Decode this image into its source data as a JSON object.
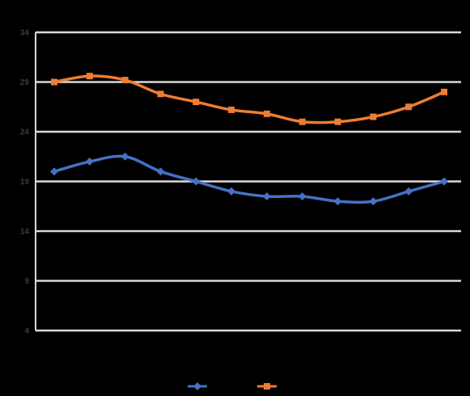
{
  "chart_data": {
    "type": "line",
    "title": "",
    "xlabel": "",
    "ylabel": "",
    "categories": [
      "",
      "",
      "",
      "",
      "",
      "",
      "",
      "",
      "",
      "",
      "",
      ""
    ],
    "yticks": [
      "4",
      "9",
      "14",
      "19",
      "24",
      "29",
      "34"
    ],
    "ylim": [
      4,
      34
    ],
    "grid": true,
    "legend_position": "bottom",
    "series": [
      {
        "name": "",
        "color": "#4472c4",
        "marker": "diamond",
        "values": [
          20,
          21,
          21.5,
          20,
          19,
          18,
          17.5,
          17.5,
          17,
          17,
          18,
          19
        ]
      },
      {
        "name": "",
        "color": "#ed7d31",
        "marker": "square",
        "values": [
          29,
          29.6,
          29.2,
          27.8,
          27,
          26.2,
          25.8,
          25,
          25,
          25.5,
          26.5,
          28
        ]
      }
    ]
  },
  "colors": {
    "gridline": "#d9d9d9",
    "axis_line": "#d9d9d9",
    "text": "#3a3a3a",
    "background": "#000000"
  }
}
